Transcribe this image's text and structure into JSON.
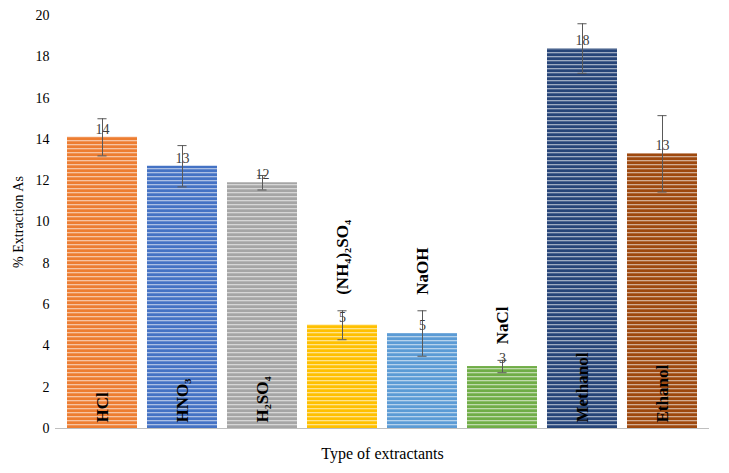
{
  "chart_data": {
    "type": "bar",
    "x_label": "Type of extractants",
    "y_label": "% Extraction As",
    "categories": [
      "HCl",
      "HNO₃",
      "H₂SO₄",
      "(NH₄)₂SO₄",
      "NaOH",
      "NaCl",
      "Methanol",
      "Ethanol"
    ],
    "values": [
      14.1,
      12.7,
      11.9,
      5.0,
      4.6,
      3.0,
      18.4,
      13.3
    ],
    "value_labels": [
      "14",
      "13",
      "12",
      "5",
      "5",
      "3",
      "18",
      "13"
    ],
    "errors": [
      0.9,
      1.0,
      0.35,
      0.7,
      1.1,
      0.3,
      1.2,
      1.85
    ],
    "colors": [
      "#ed7d31",
      "#4472c4",
      "#a5a5a5",
      "#ffc000",
      "#5b9bd5",
      "#70ad47",
      "#264478",
      "#9e480e"
    ],
    "ylim": [
      0,
      20
    ],
    "yticks": [
      0,
      2,
      4,
      6,
      8,
      10,
      12,
      14,
      16,
      18,
      20
    ],
    "grid": false,
    "data_labels": true,
    "tick_labels": "y"
  }
}
